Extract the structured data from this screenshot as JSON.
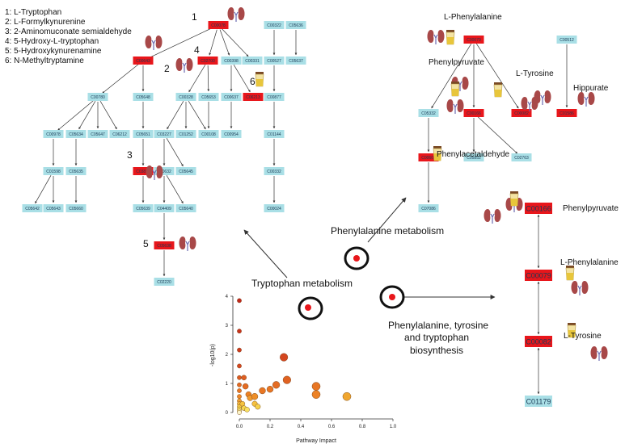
{
  "legend": [
    "1: L-Tryptophan",
    "2: L-Formylkynurenine",
    "3: 2-Aminomuconate semialdehyde",
    "4: 5-Hydroxy-L-tryptophan",
    "5: 5-Hydroxykynurenamine",
    "6: N-Methyltryptamine"
  ],
  "colors": {
    "highlight": "#e8161b",
    "normal": "#a9dfe6",
    "arrow": "#333333"
  },
  "icon_names": [
    "kidney-icon",
    "urine-cup-icon"
  ],
  "tryptophan_network": {
    "nodes": [
      {
        "id": "t1",
        "label": "C00078",
        "hl": true
      },
      {
        "id": "t2",
        "label": "C00643",
        "hl": true
      },
      {
        "id": "t3",
        "label": "C02700",
        "hl": true
      },
      {
        "id": "t4",
        "label": "C00398",
        "hl": false
      },
      {
        "id": "t5",
        "label": "C00331",
        "hl": false
      },
      {
        "id": "t6",
        "label": "C00322",
        "hl": false
      },
      {
        "id": "t7",
        "label": "C05636",
        "hl": false
      },
      {
        "id": "t8",
        "label": "C00527",
        "hl": false
      },
      {
        "id": "t9",
        "label": "C05637",
        "hl": false
      },
      {
        "id": "t10",
        "label": "C00780",
        "hl": false
      },
      {
        "id": "t11",
        "label": "C05648",
        "hl": false
      },
      {
        "id": "t12",
        "label": "C00328",
        "hl": false
      },
      {
        "id": "t13",
        "label": "C05653",
        "hl": false
      },
      {
        "id": "t14",
        "label": "C00637",
        "hl": false
      },
      {
        "id": "t15",
        "label": "C06213",
        "hl": true
      },
      {
        "id": "t16",
        "label": "C00877",
        "hl": false
      },
      {
        "id": "t17",
        "label": "C00978",
        "hl": false
      },
      {
        "id": "t18",
        "label": "C05634",
        "hl": false
      },
      {
        "id": "t19",
        "label": "C05647",
        "hl": false
      },
      {
        "id": "t20",
        "label": "C06212",
        "hl": false
      },
      {
        "id": "t21",
        "label": "C05651",
        "hl": false
      },
      {
        "id": "t22",
        "label": "C03227",
        "hl": false
      },
      {
        "id": "t23",
        "label": "C01252",
        "hl": false
      },
      {
        "id": "t24",
        "label": "C00108",
        "hl": false
      },
      {
        "id": "t25",
        "label": "C00954",
        "hl": false
      },
      {
        "id": "t26",
        "label": "C01144",
        "hl": false
      },
      {
        "id": "t27",
        "label": "C01598",
        "hl": false
      },
      {
        "id": "t28",
        "label": "C05635",
        "hl": false
      },
      {
        "id": "t29",
        "label": "C03824",
        "hl": true
      },
      {
        "id": "t30",
        "label": "C00632",
        "hl": false
      },
      {
        "id": "t31",
        "label": "C05645",
        "hl": false
      },
      {
        "id": "t32",
        "label": "C00332",
        "hl": false
      },
      {
        "id": "t33",
        "label": "C05642",
        "hl": false
      },
      {
        "id": "t34",
        "label": "C05643",
        "hl": false
      },
      {
        "id": "t35",
        "label": "C05660",
        "hl": false
      },
      {
        "id": "t36",
        "label": "C05639",
        "hl": false
      },
      {
        "id": "t37",
        "label": "C04409",
        "hl": false
      },
      {
        "id": "t38",
        "label": "C05640",
        "hl": false
      },
      {
        "id": "t39",
        "label": "C00024",
        "hl": false
      },
      {
        "id": "t40",
        "label": "C05638",
        "hl": true
      },
      {
        "id": "t41",
        "label": "C02220",
        "hl": false
      }
    ],
    "numbers": [
      "1",
      "2",
      "3",
      "4",
      "5",
      "6"
    ]
  },
  "phenylalanine_network": {
    "nodes": [
      {
        "id": "p1",
        "label": "C00079",
        "hl": true
      },
      {
        "id": "p2",
        "label": "C05332",
        "hl": false
      },
      {
        "id": "p3",
        "label": "C00166",
        "hl": true
      },
      {
        "id": "p4",
        "label": "C00082",
        "hl": true
      },
      {
        "id": "p5",
        "label": "C00512",
        "hl": false
      },
      {
        "id": "p6",
        "label": "C01586",
        "hl": true
      },
      {
        "id": "p7",
        "label": "C00601",
        "hl": true
      },
      {
        "id": "p8",
        "label": "C05852",
        "hl": false
      },
      {
        "id": "p9",
        "label": "C02763",
        "hl": false
      },
      {
        "id": "p10",
        "label": "C07086",
        "hl": false
      }
    ],
    "labels": {
      "l_phe": "L-Phenylalanine",
      "phenylpyruvate": "Phenylpyruvate",
      "l_tyr": "L-Tyrosine",
      "hippurate": "Hippurate",
      "phenylacetaldehyde": "Phenylacetaldehyde"
    }
  },
  "biosynthesis_network": {
    "nodes": [
      {
        "id": "b1",
        "label": "C00166",
        "hl": true
      },
      {
        "id": "b2",
        "label": "C00079",
        "hl": true
      },
      {
        "id": "b3",
        "label": "C00082",
        "hl": true
      },
      {
        "id": "b4",
        "label": "C01179",
        "hl": false
      }
    ],
    "labels": {
      "phenylpyruvate": "Phenylpyruvate",
      "l_phe": "L-Phenylalanine",
      "l_tyr": "L-Tyrosine"
    }
  },
  "pathway_labels": {
    "tryptophan": "Tryptophan metabolism",
    "phenylalanine": "Phenylalanine metabolism",
    "biosynthesis_1": "Phenylalanine, tyrosine",
    "biosynthesis_2": "and tryptophan",
    "biosynthesis_3": "biosynthesis"
  },
  "chart_data": {
    "type": "scatter",
    "xlabel": "Pathway Impact",
    "ylabel": "-log10(p)",
    "xlim": [
      0,
      1
    ],
    "ylim": [
      0,
      4
    ],
    "xticks": [
      "0.0",
      "0.2",
      "0.4",
      "0.6",
      "0.8",
      "1.0"
    ],
    "yticks": [
      "0",
      "1",
      "2",
      "3",
      "4"
    ],
    "grid": false,
    "points": [
      {
        "x": 0.0,
        "y": 3.85,
        "size": 1.2,
        "color": "#c0281b"
      },
      {
        "x": 0.0,
        "y": 2.8,
        "size": 1.2,
        "color": "#c8331c"
      },
      {
        "x": 0.0,
        "y": 2.15,
        "size": 1.2,
        "color": "#cd3a1d"
      },
      {
        "x": 0.0,
        "y": 1.6,
        "size": 1.2,
        "color": "#d4461f"
      },
      {
        "x": 0.0,
        "y": 1.2,
        "size": 1.2,
        "color": "#dc5a21"
      },
      {
        "x": 0.0,
        "y": 0.95,
        "size": 1.2,
        "color": "#e36a23"
      },
      {
        "x": 0.0,
        "y": 0.75,
        "size": 1.2,
        "color": "#e87624"
      },
      {
        "x": 0.0,
        "y": 0.55,
        "size": 1.2,
        "color": "#ee8626"
      },
      {
        "x": 0.0,
        "y": 0.4,
        "size": 1.2,
        "color": "#f2a030"
      },
      {
        "x": 0.0,
        "y": 0.3,
        "size": 1.2,
        "color": "#f4b83a"
      },
      {
        "x": 0.0,
        "y": 0.2,
        "size": 1.2,
        "color": "#f6cc44"
      },
      {
        "x": 0.0,
        "y": 0.12,
        "size": 1.2,
        "color": "#f8dc55"
      },
      {
        "x": 0.0,
        "y": 0.05,
        "size": 1.2,
        "color": "#fae880"
      },
      {
        "x": 0.0,
        "y": 0.0,
        "size": 1.2,
        "color": "#fdf5c8"
      },
      {
        "x": 0.02,
        "y": 0.3,
        "size": 1.4,
        "color": "#f4c23f"
      },
      {
        "x": 0.03,
        "y": 0.15,
        "size": 1.4,
        "color": "#f7d74e"
      },
      {
        "x": 0.05,
        "y": 0.1,
        "size": 1.4,
        "color": "#f8e060"
      },
      {
        "x": 0.03,
        "y": 1.2,
        "size": 1.4,
        "color": "#de5e22"
      },
      {
        "x": 0.04,
        "y": 0.9,
        "size": 1.6,
        "color": "#e46c23"
      },
      {
        "x": 0.06,
        "y": 0.62,
        "size": 1.6,
        "color": "#ec8226"
      },
      {
        "x": 0.07,
        "y": 0.5,
        "size": 1.6,
        "color": "#f09a2e"
      },
      {
        "x": 0.1,
        "y": 0.55,
        "size": 1.8,
        "color": "#ee8e28"
      },
      {
        "x": 0.15,
        "y": 0.75,
        "size": 1.8,
        "color": "#e87624"
      },
      {
        "x": 0.2,
        "y": 0.8,
        "size": 1.8,
        "color": "#e87624"
      },
      {
        "x": 0.24,
        "y": 0.95,
        "size": 2.0,
        "color": "#e46c23"
      },
      {
        "x": 0.29,
        "y": 1.9,
        "size": 2.2,
        "color": "#d4461f"
      },
      {
        "x": 0.31,
        "y": 1.12,
        "size": 2.2,
        "color": "#e06222"
      },
      {
        "x": 0.5,
        "y": 0.9,
        "size": 2.3,
        "color": "#e87624"
      },
      {
        "x": 0.5,
        "y": 0.62,
        "size": 2.3,
        "color": "#ec8226"
      },
      {
        "x": 0.7,
        "y": 0.55,
        "size": 2.3,
        "color": "#f0a62f"
      },
      {
        "x": 0.1,
        "y": 0.3,
        "size": 1.5,
        "color": "#f4c03e"
      },
      {
        "x": 0.12,
        "y": 0.2,
        "size": 1.5,
        "color": "#f6d04a"
      }
    ]
  }
}
